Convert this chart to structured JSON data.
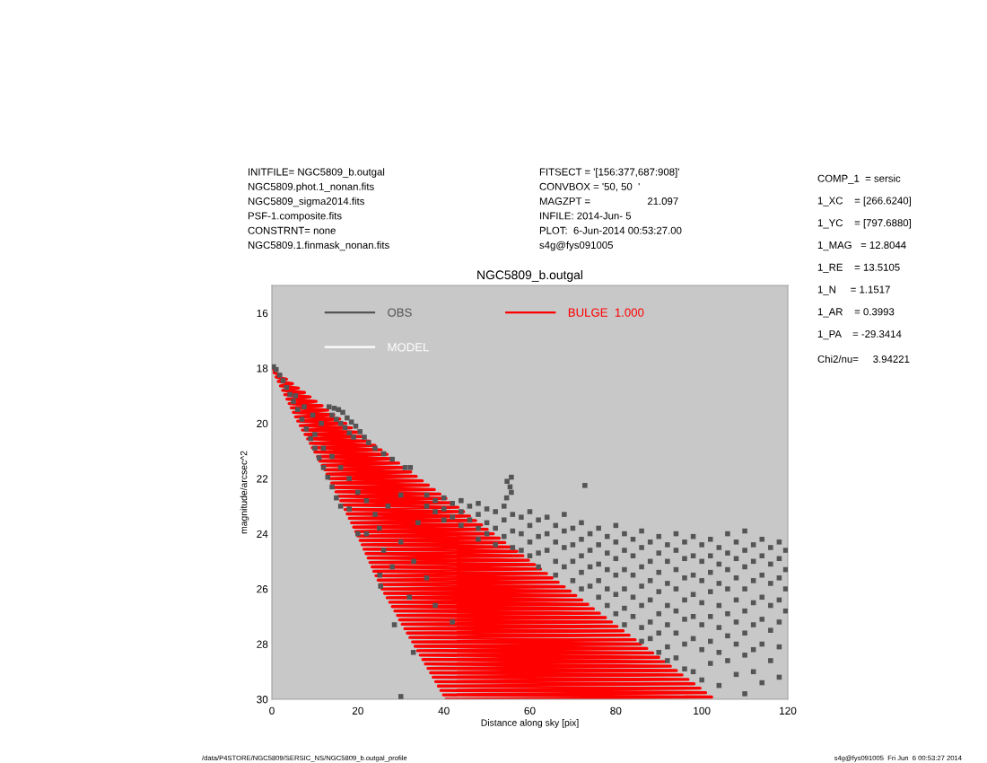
{
  "chart_data": {
    "type": "scatter",
    "title": "NGC5809_b.outgal",
    "xlabel": "Distance along sky [pix]",
    "ylabel": "magnitude/arcsec^2",
    "xlim": [
      0,
      120
    ],
    "ylim": [
      30,
      15
    ],
    "xticks": [
      0,
      20,
      40,
      60,
      80,
      100,
      120
    ],
    "yticks": [
      16,
      18,
      20,
      22,
      24,
      26,
      28,
      30
    ],
    "legend": "top left",
    "annotations": [
      "INITFILE= NGC5809_b.outgal\nNGC5809.phot.1_nonan.fits\nNGC5809_sigma2014.fits\nPSF-1.composite.fits\nCONSTRNT= none\nNGC5809.1.finmask_nonan.fits",
      "FITSECT = '[156:377,687:908]'\nCONVBOX = '50, 50  '\nMAGZPT =                    21.097\nINFILE: 2014-Jun- 5\nPLOT:  6-Jun-2014 00:53:27.00\ns4g@fys091005",
      "COMP_1  = sersic\n1_XC    = [266.6240]\n1_YC    = [797.6880]\n1_MAG   = 12.8044\n1_RE    = 13.5105\n1_N     = 1.1517\n1_AR    = 0.3993\n1_PA    = -29.3414",
      "Chi2/nu=     3.94221",
      "/data/P4STORE/NGC5809/SERSIC_NS/NGC5809_b.outgal_profile",
      "s4g@fys091005  Fri Jun  6 00:53:27 2014"
    ],
    "series": [
      {
        "name": "OBS",
        "marker": "square",
        "color": "#555555",
        "x": [
          0.4,
          1.0,
          1.8,
          2.6,
          3.4,
          4.2,
          5.0,
          6.0,
          7.0,
          8.0,
          9.0,
          10.0,
          11.0,
          12.0,
          13.0,
          14.0,
          15.0,
          16.0,
          5.5,
          7.5,
          9.5,
          11.5,
          13.3,
          14.5,
          15.5,
          16.5,
          17.5,
          18.5,
          19.5,
          20.5,
          21.5,
          14.0,
          15.0,
          16.0,
          17.0,
          18.0,
          19.0,
          22.5,
          24.0,
          26.0,
          28.0,
          10.0,
          12.0,
          14.0,
          16.0,
          18.0,
          20.0,
          22.0,
          24.0,
          18.0,
          22.0,
          26.0,
          28.0,
          25.0,
          30.0,
          33.0,
          36.0,
          20.0,
          32.0,
          38.0,
          42.0,
          27.0,
          30.0,
          34.0,
          31.0,
          32.2,
          25.1,
          25.3,
          28.5,
          32.9,
          30.0,
          72.8,
          55.7,
          54.7,
          55.4,
          55.7,
          54.6,
          36,
          36,
          38,
          38,
          40,
          40,
          40,
          42,
          42,
          44,
          44,
          44,
          46,
          46,
          48,
          48,
          48,
          48,
          50,
          50,
          50,
          52,
          52,
          52,
          54,
          54,
          54,
          56,
          56,
          56,
          58,
          58,
          58,
          60,
          60,
          60,
          60,
          62,
          62,
          62,
          62,
          64,
          64,
          64,
          66,
          66,
          66,
          66,
          68,
          68,
          68,
          68,
          70,
          70,
          70,
          70,
          72,
          72,
          72,
          72,
          72,
          74,
          74,
          74,
          74,
          76,
          76,
          76,
          76,
          76,
          78,
          78,
          78,
          78,
          78,
          80,
          80,
          80,
          80,
          80,
          80,
          82,
          82,
          82,
          82,
          82,
          82,
          84,
          84,
          84,
          84,
          84,
          86,
          86,
          86,
          86,
          86,
          86,
          86,
          88,
          88,
          88,
          88,
          88,
          88,
          90,
          90,
          90,
          90,
          90,
          90,
          90,
          92,
          92,
          92,
          92,
          92,
          92,
          92,
          94,
          94,
          94,
          94,
          94,
          94,
          94,
          96,
          96,
          96,
          96,
          96,
          96,
          96,
          98,
          98,
          98,
          98,
          98,
          98,
          98,
          100,
          100,
          100,
          100,
          100,
          100,
          100,
          102,
          102,
          102,
          102,
          102,
          102,
          102,
          104,
          104,
          104,
          104,
          104,
          104,
          104,
          106,
          106,
          106,
          106,
          106,
          106,
          106,
          108,
          108,
          108,
          108,
          108,
          108,
          108,
          110,
          110,
          110,
          110,
          110,
          110,
          110,
          110,
          112,
          112,
          112,
          112,
          112,
          112,
          112,
          114,
          114,
          114,
          114,
          114,
          114,
          114,
          116,
          116,
          116,
          116,
          116,
          116,
          118,
          118,
          118,
          118,
          118,
          118,
          118,
          119.5,
          119.5,
          119.5,
          119.5
        ],
        "values": [
          17.95,
          18.05,
          18.25,
          18.45,
          18.7,
          18.95,
          19.2,
          19.5,
          19.85,
          20.2,
          20.55,
          20.9,
          21.25,
          21.6,
          21.95,
          22.3,
          22.7,
          23.0,
          19.0,
          19.4,
          19.7,
          20.0,
          19.4,
          19.45,
          19.5,
          19.6,
          19.8,
          19.95,
          20.1,
          20.3,
          20.5,
          19.7,
          19.85,
          20.0,
          20.15,
          20.35,
          20.5,
          20.7,
          20.9,
          21.1,
          21.3,
          20.4,
          20.9,
          21.2,
          21.6,
          22.0,
          22.5,
          22.8,
          23.3,
          23.1,
          24.0,
          24.6,
          25.2,
          23.8,
          24.3,
          25.0,
          25.6,
          24.0,
          26.3,
          26.6,
          27.2,
          23.0,
          22.6,
          23.6,
          21.6,
          21.6,
          25.5,
          25.9,
          27.3,
          28.3,
          29.9,
          22.25,
          21.95,
          22.1,
          22.3,
          22.5,
          22.7,
          22.6,
          23.0,
          22.8,
          23.2,
          22.7,
          23.1,
          23.5,
          22.9,
          23.4,
          22.8,
          23.2,
          23.7,
          23.0,
          23.5,
          22.9,
          23.3,
          23.8,
          24.2,
          23.1,
          23.6,
          24.0,
          23.2,
          23.8,
          24.4,
          23.0,
          23.5,
          24.1,
          23.3,
          23.9,
          24.5,
          23.4,
          24.0,
          24.6,
          23.2,
          23.7,
          24.3,
          24.8,
          23.5,
          24.1,
          24.7,
          25.2,
          23.4,
          24.0,
          24.6,
          23.7,
          24.3,
          25.0,
          25.5,
          23.3,
          23.9,
          24.5,
          25.2,
          23.8,
          24.4,
          25.0,
          25.7,
          23.6,
          24.2,
          24.8,
          25.4,
          26.0,
          24.0,
          24.6,
          25.2,
          25.9,
          23.8,
          24.4,
          25.1,
          25.7,
          26.3,
          24.1,
          24.7,
          25.3,
          26.0,
          26.6,
          23.7,
          24.3,
          24.9,
          25.5,
          26.2,
          26.9,
          24.0,
          24.6,
          25.3,
          26.0,
          26.7,
          27.3,
          24.2,
          24.8,
          25.5,
          26.3,
          27.0,
          23.9,
          24.5,
          25.2,
          25.9,
          26.6,
          27.4,
          27.9,
          24.3,
          25.0,
          25.7,
          26.4,
          27.2,
          27.8,
          24.1,
          24.7,
          25.4,
          26.1,
          26.9,
          27.6,
          28.3,
          24.4,
          25.0,
          25.8,
          26.6,
          27.3,
          28.1,
          28.6,
          24.0,
          24.6,
          25.3,
          26.0,
          26.8,
          27.6,
          28.5,
          24.3,
          24.9,
          25.6,
          26.4,
          27.1,
          28.0,
          28.9,
          24.1,
          24.8,
          25.5,
          26.2,
          27.0,
          27.8,
          29.0,
          24.4,
          25.0,
          25.7,
          26.5,
          27.3,
          28.2,
          29.3,
          24.2,
          24.8,
          25.4,
          26.1,
          27.0,
          27.9,
          28.7,
          24.5,
          25.1,
          25.8,
          26.6,
          27.4,
          28.3,
          29.5,
          24.0,
          24.7,
          25.3,
          26.0,
          26.9,
          27.7,
          28.6,
          24.3,
          24.9,
          25.6,
          26.4,
          27.2,
          28.0,
          29.1,
          23.9,
          24.6,
          25.2,
          26.0,
          26.8,
          27.6,
          28.4,
          29.8,
          24.4,
          25.0,
          25.7,
          26.5,
          27.3,
          28.2,
          29.0,
          24.2,
          24.8,
          25.5,
          26.3,
          27.1,
          28.0,
          29.4,
          24.5,
          25.1,
          25.8,
          26.6,
          27.5,
          28.6,
          24.3,
          24.9,
          25.6,
          26.4,
          27.2,
          28.1,
          29.2,
          24.6,
          25.3,
          26.0,
          26.8
        ]
      },
      {
        "name": "MODEL",
        "type": "line",
        "color": "#ffffff"
      },
      {
        "name": "BULGE  1.000",
        "type": "line",
        "color": "#ff0000",
        "x": [
          0.0,
          0.7,
          0.5,
          2.1,
          1.0,
          3.4,
          1.5,
          4.8,
          2.0,
          6.2,
          2.5,
          7.6,
          3.0,
          8.9,
          3.5,
          10.3,
          4.0,
          11.7,
          4.5,
          13.0,
          5.0,
          14.4,
          5.5,
          15.8,
          6.0,
          17.2,
          6.6,
          18.5,
          7.1,
          19.9,
          7.7,
          21.3,
          8.3,
          22.7,
          8.9,
          24.0,
          9.4,
          25.4,
          10.0,
          26.8,
          10.6,
          28.2,
          11.1,
          29.5,
          11.7,
          30.9,
          12.3,
          32.3,
          12.8,
          33.6,
          13.4,
          35.0,
          13.9,
          36.4,
          14.4,
          37.8,
          14.9,
          39.1,
          15.4,
          40.5,
          16.0,
          41.9,
          16.5,
          43.3,
          17.0,
          44.6,
          17.5,
          46.0,
          18.0,
          47.4,
          18.5,
          48.8,
          19.0,
          50.1,
          19.5,
          51.5,
          20.0,
          52.9,
          20.5,
          54.2,
          21.0,
          55.6,
          21.4,
          57.0,
          21.9,
          58.4,
          22.4,
          59.7,
          22.8,
          61.1,
          23.3,
          62.5,
          23.7,
          63.9,
          24.2,
          65.2,
          24.7,
          66.6,
          25.1,
          68.0,
          25.6,
          69.4,
          26.2,
          70.7,
          26.8,
          72.1,
          27.4,
          73.5,
          28.0,
          74.8,
          28.6,
          76.2,
          29.2,
          77.6,
          29.7,
          79.0,
          30.3,
          80.3,
          30.9,
          81.7,
          31.5,
          83.1,
          32.1,
          84.5,
          32.7,
          85.8,
          33.3,
          87.2,
          33.9,
          88.6,
          34.5,
          90.0,
          35.1,
          91.3,
          35.7,
          92.7,
          36.3,
          94.1,
          36.9,
          95.4,
          37.5,
          96.8,
          38.1,
          98.2,
          38.7,
          99.6,
          39.3,
          100.9,
          39.9,
          102.3,
          40.5
        ],
        "values": [
          18.0,
          18.08,
          18.16,
          18.24,
          18.32,
          18.4,
          18.48,
          18.56,
          18.64,
          18.72,
          18.8,
          18.88,
          18.96,
          19.04,
          19.12,
          19.2,
          19.28,
          19.36,
          19.44,
          19.52,
          19.6,
          19.68,
          19.76,
          19.84,
          19.92,
          20.0,
          20.08,
          20.16,
          20.24,
          20.32,
          20.4,
          20.48,
          20.56,
          20.64,
          20.72,
          20.8,
          20.88,
          20.96,
          21.04,
          21.12,
          21.2,
          21.28,
          21.36,
          21.44,
          21.52,
          21.6,
          21.68,
          21.76,
          21.84,
          21.92,
          22.0,
          22.08,
          22.16,
          22.24,
          22.32,
          22.4,
          22.48,
          22.56,
          22.64,
          22.72,
          22.8,
          22.88,
          22.96,
          23.04,
          23.12,
          23.2,
          23.28,
          23.36,
          23.44,
          23.52,
          23.6,
          23.68,
          23.76,
          23.84,
          23.92,
          24.0,
          24.08,
          24.16,
          24.24,
          24.32,
          24.4,
          24.48,
          24.56,
          24.64,
          24.72,
          24.8,
          24.88,
          24.96,
          25.04,
          25.12,
          25.2,
          25.28,
          25.36,
          25.44,
          25.52,
          25.6,
          25.68,
          25.76,
          25.84,
          25.92,
          26.0,
          26.08,
          26.16,
          26.24,
          26.32,
          26.4,
          26.48,
          26.56,
          26.64,
          26.72,
          26.8,
          26.88,
          26.96,
          27.04,
          27.12,
          27.2,
          27.28,
          27.36,
          27.44,
          27.52,
          27.6,
          27.68,
          27.76,
          27.84,
          27.92,
          28.0,
          28.08,
          28.16,
          28.24,
          28.32,
          28.4,
          28.48,
          28.56,
          28.64,
          28.72,
          28.8,
          28.88,
          28.96,
          29.04,
          29.12,
          29.2,
          29.28,
          29.36,
          29.44,
          29.52,
          29.6,
          29.68,
          29.76,
          29.84,
          29.92,
          30.0
        ]
      }
    ]
  }
}
